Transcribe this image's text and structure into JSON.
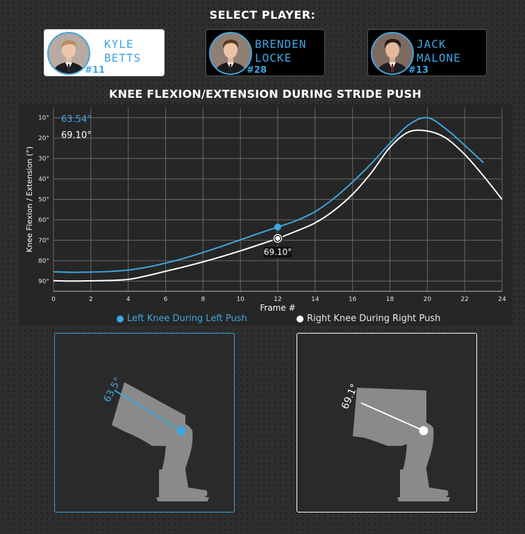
{
  "header": {
    "select_player_label": "SELECT PLAYER:"
  },
  "players": [
    {
      "first": "KYLE",
      "last": "BETTS",
      "number": "#11",
      "selected": true
    },
    {
      "first": "BRENDEN",
      "last": "LOCKE",
      "number": "#28",
      "selected": false
    },
    {
      "first": "JACK",
      "last": "MALONE",
      "number": "#13",
      "selected": false
    }
  ],
  "chart_data": {
    "type": "line",
    "title": "KNEE FLEXION/EXTENSION DURING STRIDE PUSH",
    "xlabel": "Frame #",
    "ylabel": "Knee Flexion / Extension (°)",
    "xlim": [
      0,
      24
    ],
    "ylim": [
      95,
      5
    ],
    "x_ticks": [
      "0",
      "2",
      "4",
      "6",
      "8",
      "10",
      "12",
      "14",
      "16",
      "18",
      "20",
      "22",
      "24"
    ],
    "y_ticks": [
      "10°",
      "20°",
      "30°",
      "40°",
      "50°",
      "60°",
      "70°",
      "80°",
      "90°"
    ],
    "grid": true,
    "series": [
      {
        "name": "Left Knee During Left Push",
        "color": "#3ea6e0",
        "x": [
          0,
          1,
          2,
          3,
          4,
          5,
          6,
          7,
          8,
          9,
          10,
          11,
          12,
          13,
          14,
          15,
          16,
          17,
          18,
          19,
          20,
          21,
          22,
          23
        ],
        "y": [
          85.5,
          85.7,
          85.6,
          85.3,
          84.6,
          83.2,
          81.2,
          78.8,
          76.0,
          73.0,
          69.8,
          66.6,
          63.54,
          60.4,
          56.0,
          49.5,
          41.5,
          32.5,
          22.5,
          13.5,
          10.0,
          15.5,
          23.5,
          32.0
        ]
      },
      {
        "name": "Right Knee During Right Push",
        "color": "#ffffff",
        "x": [
          0,
          1,
          2,
          3,
          4,
          5,
          6,
          7,
          8,
          9,
          10,
          11,
          12,
          13,
          14,
          15,
          16,
          17,
          18,
          19,
          20,
          21,
          22,
          23,
          24
        ],
        "y": [
          89.8,
          90.0,
          89.9,
          89.7,
          89.2,
          87.4,
          85.2,
          83.0,
          80.6,
          78.0,
          75.2,
          72.2,
          69.1,
          65.5,
          61.5,
          55.5,
          47.5,
          37.0,
          24.5,
          17.0,
          16.5,
          20.0,
          28.0,
          38.5,
          50.0
        ]
      }
    ],
    "readout_left": "63.54°",
    "readout_right": "69.10°",
    "cursor_frame": 12,
    "tooltip": "69.10°"
  },
  "knee_views": {
    "left": {
      "angle_label": "63.5°",
      "color": "#3ea6e0"
    },
    "right": {
      "angle_label": "69.1°",
      "color": "#ffffff"
    }
  }
}
